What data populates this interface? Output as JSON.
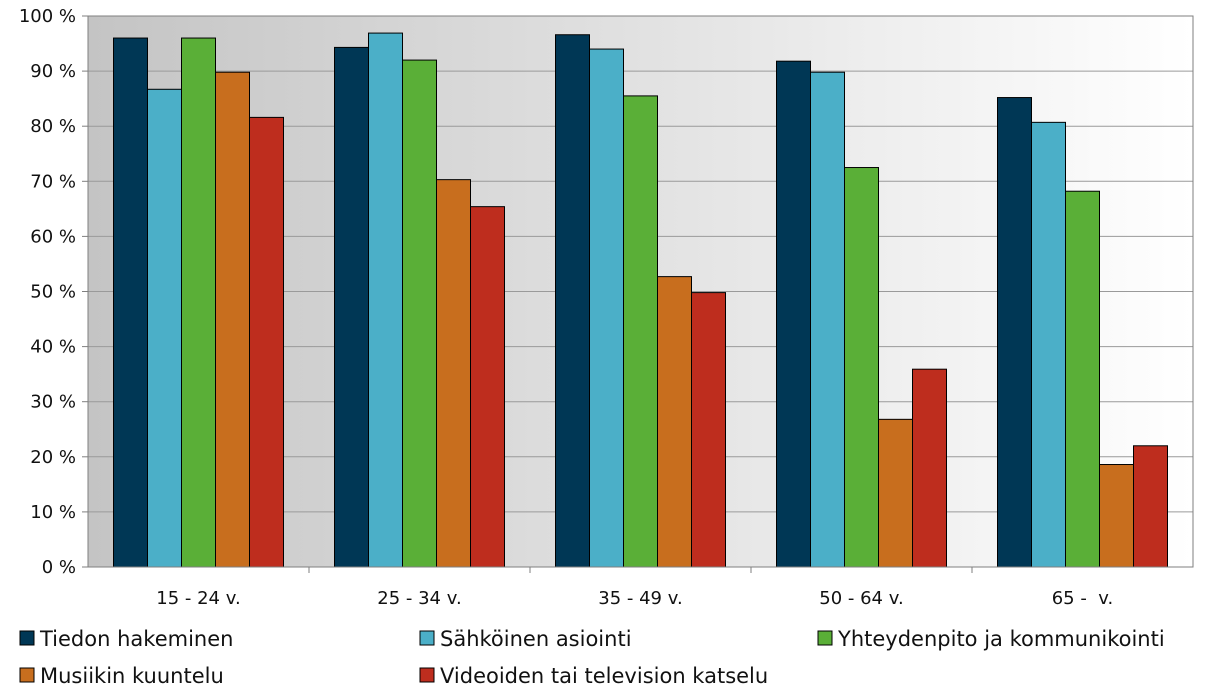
{
  "chart_data": {
    "type": "bar",
    "categories": [
      "15 - 24 v.",
      "25 - 34 v.",
      "35 - 49 v.",
      "50 - 64 v.",
      "65 -  v."
    ],
    "series": [
      {
        "name": "Tiedon hakeminen",
        "color": "#003755",
        "values": [
          96,
          94.3,
          96.6,
          91.8,
          85.2
        ]
      },
      {
        "name": "Sähköinen asiointi",
        "color": "#4bafc8",
        "values": [
          86.7,
          96.9,
          94,
          89.8,
          80.7
        ]
      },
      {
        "name": "Yhteydenpito ja kommunikointi",
        "color": "#5aaf37",
        "values": [
          96,
          92,
          85.5,
          72.5,
          68.2
        ]
      },
      {
        "name": "Musiikin kuuntelu",
        "color": "#c86e1e",
        "values": [
          89.8,
          70.3,
          52.7,
          26.8,
          18.6
        ]
      },
      {
        "name": "Videoiden tai television katselu",
        "color": "#be2d1e",
        "values": [
          81.6,
          65.4,
          49.8,
          35.9,
          22
        ]
      }
    ],
    "y_ticks": [
      "0 %",
      "10 %",
      "20 %",
      "30 %",
      "40 %",
      "50 %",
      "60 %",
      "70 %",
      "80 %",
      "90 %",
      "100 %"
    ],
    "ylim": [
      0,
      100
    ],
    "grid": true,
    "legend_position": "bottom",
    "plot_background": "gradient #c8c8c8 to #ffffff"
  }
}
